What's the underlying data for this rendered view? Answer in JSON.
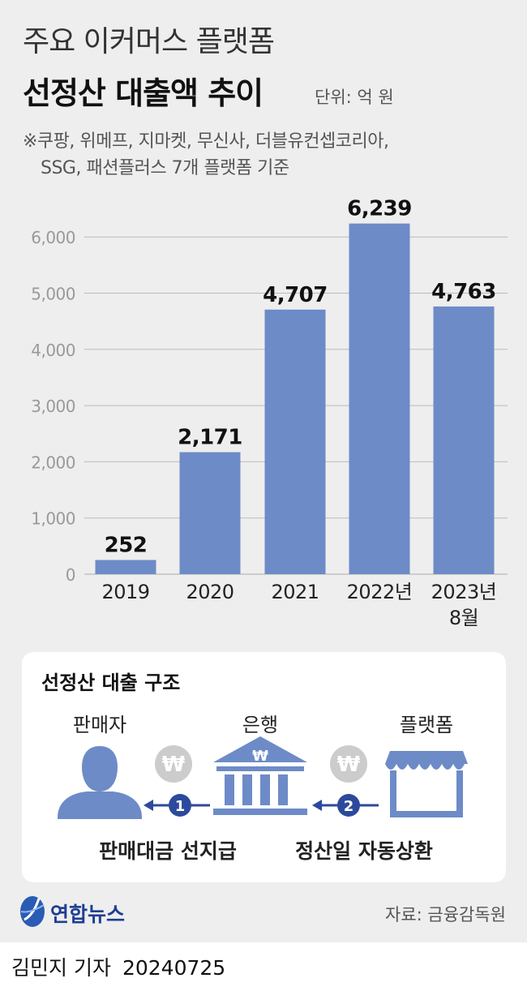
{
  "header": {
    "title_line1": "주요 이커머스 플랫폼",
    "title_line2": "선정산 대출액 추이",
    "unit": "단위: 억 원",
    "note_line1": "※쿠팡, 위메프, 지마켓, 무신사, 더블유컨셉코리아,",
    "note_line2": "SSG, 패션플러스 7개 플랫폼 기준"
  },
  "chart_data": {
    "type": "bar",
    "categories": [
      "2019",
      "2020",
      "2021",
      "2022년",
      "2023년\n8월"
    ],
    "values": [
      252,
      2171,
      4707,
      6239,
      4763
    ],
    "value_labels": [
      "252",
      "2,171",
      "4,707",
      "6,239",
      "4,763"
    ],
    "yticks": [
      0,
      1000,
      2000,
      3000,
      4000,
      5000,
      6000
    ],
    "ytick_labels": [
      "0",
      "1,000",
      "2,000",
      "3,000",
      "4,000",
      "5,000",
      "6,000"
    ],
    "ylim": [
      0,
      6500
    ],
    "grid": true,
    "bar_color": "#6d8bc7"
  },
  "structure": {
    "title": "선정산 대출 구조",
    "seller_label": "판매자",
    "bank_label": "은행",
    "platform_label": "플랫폼",
    "coin_symbol": "₩",
    "step1_number": "1",
    "step2_number": "2",
    "step1_caption": "판매대금 선지급",
    "step2_caption": "정산일 자동상환",
    "icon_color": "#6d8bc7",
    "coin_color": "#cccccc",
    "step_color": "#2c4a9c"
  },
  "footer": {
    "logo_text": "연합뉴스",
    "source": "자료: 금융감독원",
    "reporter": "김민지 기자",
    "date": "20240725"
  }
}
